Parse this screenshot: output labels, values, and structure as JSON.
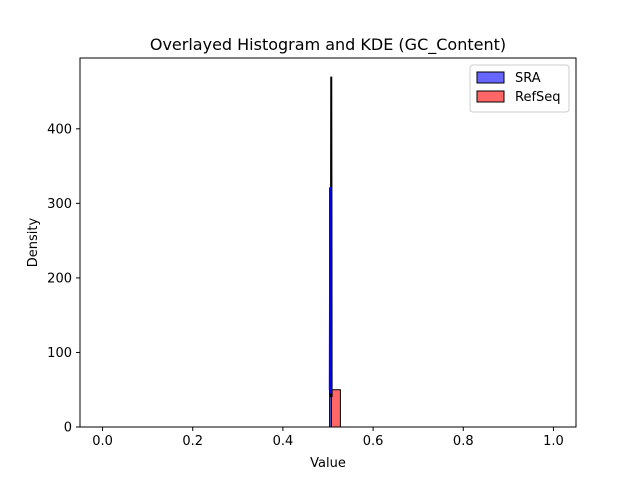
{
  "chart_data": {
    "type": "histogram",
    "title": "Overlayed Histogram and KDE (GC_Content)",
    "xlabel": "Value",
    "ylabel": "Density",
    "xlim": [
      -0.05,
      1.05
    ],
    "ylim": [
      0,
      495
    ],
    "xticks": [
      0.0,
      0.2,
      0.4,
      0.6,
      0.8,
      1.0
    ],
    "xtick_labels": [
      "0.0",
      "0.2",
      "0.4",
      "0.6",
      "0.8",
      "1.0"
    ],
    "yticks": [
      0,
      100,
      200,
      300,
      400
    ],
    "ytick_labels": [
      "0",
      "100",
      "200",
      "300",
      "400"
    ],
    "grid": false,
    "legend_position": "top-right",
    "series": [
      {
        "name": "SRA",
        "color": "#0000ff",
        "fill_alpha": 0.6,
        "bins": [
          {
            "x0": 0.5035,
            "x1": 0.5075,
            "y": 320
          }
        ],
        "kde": {
          "x": [
            0.504,
            0.5045,
            0.505,
            0.5053,
            0.5056,
            0.506,
            0.5065
          ],
          "y": [
            50,
            200,
            310,
            322,
            300,
            180,
            45
          ]
        }
      },
      {
        "name": "RefSeq",
        "color": "#ff0000",
        "fill_alpha": 0.6,
        "bins": [
          {
            "x0": 0.5075,
            "x1": 0.5275,
            "y": 50
          }
        ],
        "kde": {
          "x": [
            0.5064,
            0.5068,
            0.5072,
            0.5076,
            0.508
          ],
          "y": [
            40,
            300,
            470,
            300,
            40
          ]
        }
      }
    ]
  }
}
